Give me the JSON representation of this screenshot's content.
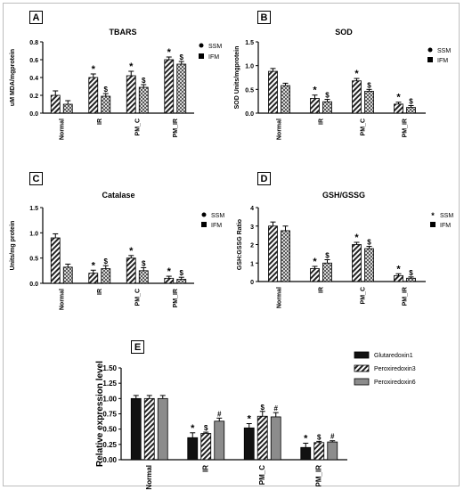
{
  "chart_data": [
    {
      "panel": "A",
      "type": "bar",
      "title": "TBARS",
      "ylabel": "uM MDA/mgprotein",
      "ylim": [
        0,
        0.8
      ],
      "yticks": [
        "0.0",
        "0.2",
        "0.4",
        "0.6",
        "0.8"
      ],
      "categories": [
        "Normal",
        "IR",
        "PM_C",
        "PM_IR"
      ],
      "series": [
        {
          "name": "SSM",
          "values": [
            0.2,
            0.4,
            0.42,
            0.6
          ],
          "errors": [
            0.05,
            0.04,
            0.05,
            0.03
          ],
          "marks": [
            "",
            "*",
            "*",
            "*"
          ],
          "pattern": "diag"
        },
        {
          "name": "IFM",
          "values": [
            0.1,
            0.19,
            0.29,
            0.55
          ],
          "errors": [
            0.04,
            0.03,
            0.03,
            0.03
          ],
          "marks": [
            "",
            "$",
            "$",
            "$"
          ],
          "pattern": "check"
        }
      ],
      "legend": "top-right",
      "legend_markers": [
        "dot",
        "square"
      ]
    },
    {
      "panel": "B",
      "type": "bar",
      "title": "SOD",
      "ylabel": "SOD Units/mgprotein",
      "ylim": [
        0,
        1.5
      ],
      "yticks": [
        "0.0",
        "0.5",
        "1.0",
        "1.5"
      ],
      "categories": [
        "Normal",
        "IR",
        "PM_C",
        "PM_IR"
      ],
      "series": [
        {
          "name": "SSM",
          "values": [
            0.88,
            0.31,
            0.68,
            0.19
          ],
          "errors": [
            0.06,
            0.07,
            0.05,
            0.04
          ],
          "marks": [
            "",
            "*",
            "*",
            "*"
          ],
          "pattern": "diag"
        },
        {
          "name": "IFM",
          "values": [
            0.58,
            0.24,
            0.46,
            0.12
          ],
          "errors": [
            0.05,
            0.05,
            0.04,
            0.04
          ],
          "marks": [
            "",
            "$",
            "$",
            "$"
          ],
          "pattern": "check"
        }
      ],
      "legend": "top-right",
      "legend_markers": [
        "dot",
        "square"
      ]
    },
    {
      "panel": "C",
      "type": "bar",
      "title": "Catalase",
      "ylabel": "Units/mg protein",
      "ylim": [
        0,
        1.5
      ],
      "yticks": [
        "0.0",
        "0.5",
        "1.0",
        "1.5"
      ],
      "categories": [
        "Normal",
        "IR",
        "PM_C",
        "PM_IR"
      ],
      "series": [
        {
          "name": "SSM",
          "values": [
            0.9,
            0.2,
            0.5,
            0.1
          ],
          "errors": [
            0.08,
            0.06,
            0.05,
            0.04
          ],
          "marks": [
            "",
            "*",
            "*",
            "*"
          ],
          "pattern": "diag"
        },
        {
          "name": "IFM",
          "values": [
            0.32,
            0.29,
            0.25,
            0.08
          ],
          "errors": [
            0.06,
            0.06,
            0.06,
            0.04
          ],
          "marks": [
            "",
            "$",
            "$",
            "$"
          ],
          "pattern": "check"
        }
      ],
      "legend": "top-right",
      "legend_markers": [
        "dot",
        "square"
      ]
    },
    {
      "panel": "D",
      "type": "bar",
      "title": "GSH/GSSG",
      "ylabel": "GSH:GSSG Ratio",
      "ylim": [
        0,
        4
      ],
      "yticks": [
        "0",
        "1",
        "2",
        "3",
        "4"
      ],
      "categories": [
        "Normal",
        "IR",
        "PM_C",
        "PM_IR"
      ],
      "series": [
        {
          "name": "SSM",
          "values": [
            3.0,
            0.7,
            2.0,
            0.32
          ],
          "errors": [
            0.22,
            0.12,
            0.12,
            0.1
          ],
          "marks": [
            "",
            "*",
            "*",
            "*"
          ],
          "pattern": "diag"
        },
        {
          "name": "IFM",
          "values": [
            2.75,
            1.0,
            1.78,
            0.18
          ],
          "errors": [
            0.25,
            0.18,
            0.12,
            0.07
          ],
          "marks": [
            "",
            "$",
            "$",
            "$"
          ],
          "pattern": "check"
        }
      ],
      "legend": "top-right",
      "legend_markers": [
        "star",
        "square"
      ]
    },
    {
      "panel": "E",
      "type": "bar",
      "title": "",
      "ylabel": "Relative expression level",
      "ylim": [
        0,
        1.5
      ],
      "yticks": [
        "0.00",
        "0.25",
        "0.50",
        "0.75",
        "1.00",
        "1.25",
        "1.50"
      ],
      "categories": [
        "Normal",
        "IR",
        "PM_C",
        "PM_IR"
      ],
      "series": [
        {
          "name": "Glutaredoxin1",
          "values": [
            1.0,
            0.36,
            0.52,
            0.2
          ],
          "errors": [
            0.05,
            0.08,
            0.07,
            0.07
          ],
          "marks": [
            "",
            "*",
            "*",
            "*"
          ],
          "pattern": "solid"
        },
        {
          "name": "Peroxiredoxin3",
          "values": [
            1.0,
            0.43,
            0.71,
            0.28
          ],
          "errors": [
            0.05,
            0.02,
            0.08,
            0.02
          ],
          "marks": [
            "",
            "$",
            "$",
            "$"
          ],
          "pattern": "diag"
        },
        {
          "name": "Peroxiredoxin6",
          "values": [
            1.0,
            0.63,
            0.7,
            0.29
          ],
          "errors": [
            0.05,
            0.05,
            0.07,
            0.02
          ],
          "marks": [
            "",
            "#",
            "#",
            "#"
          ],
          "pattern": "gray"
        }
      ],
      "legend": "top-right",
      "legend_markers": [
        "square",
        "square",
        "square"
      ]
    }
  ]
}
